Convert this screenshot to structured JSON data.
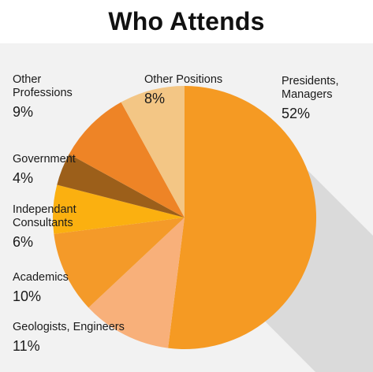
{
  "chart_data": {
    "type": "pie",
    "title": "Who Attends",
    "start_angle_deg": 0,
    "direction": "clockwise",
    "slices": [
      {
        "label": "Presidents,\nManagers",
        "value": 52,
        "display": "52%",
        "color": "#f59a23"
      },
      {
        "label": "Geologists, Engineers",
        "value": 11,
        "display": "11%",
        "color": "#f8b07a"
      },
      {
        "label": "Academics",
        "value": 10,
        "display": "10%",
        "color": "#f49a29"
      },
      {
        "label": "Independant\nConsultants",
        "value": 6,
        "display": "6%",
        "color": "#fbb010"
      },
      {
        "label": "Government",
        "value": 4,
        "display": "4%",
        "color": "#9c5f1a"
      },
      {
        "label": "Other\nProfessions",
        "value": 9,
        "display": "9%",
        "color": "#ee8426"
      },
      {
        "label": "Other Positions",
        "value": 8,
        "display": "8%",
        "color": "#f3c685"
      }
    ]
  }
}
